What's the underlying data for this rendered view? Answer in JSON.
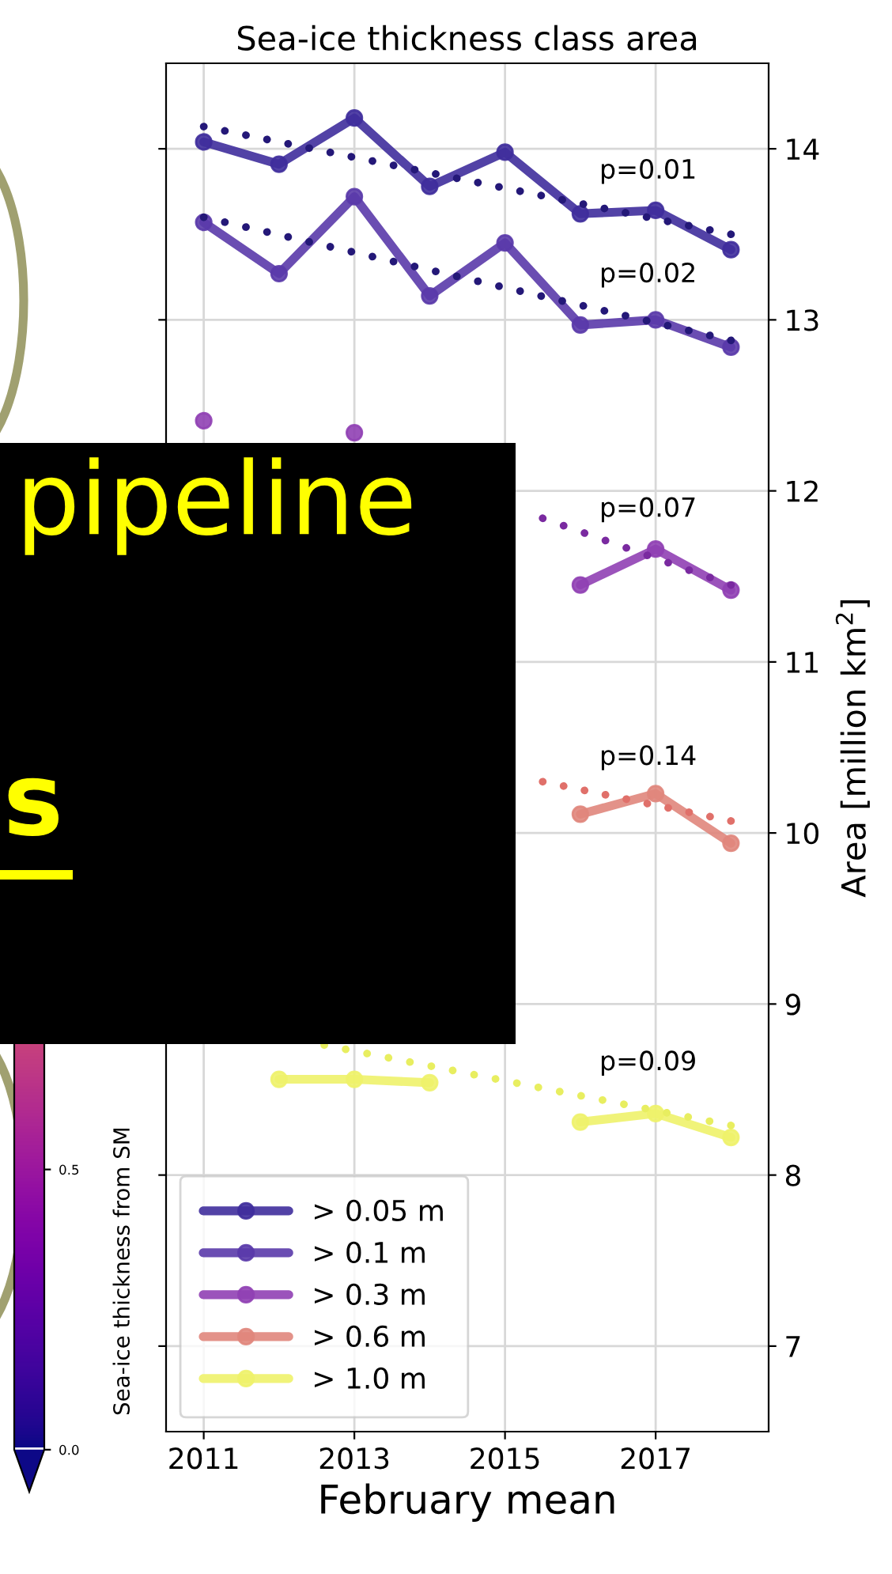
{
  "chart_data": {
    "type": "line",
    "title": "Sea-ice thickness class area",
    "xlabel": "February mean",
    "ylabel": "Area [million km$^{2}$]",
    "clabel": "Sea-ice thickness from SM",
    "clim": [
      0,
      1.5
    ],
    "cticks": [
      {
        "value": 0,
        "label": "0.0"
      },
      {
        "value": 0.5,
        "label": "0.5"
      }
    ],
    "x": [
      2011,
      2012,
      2013,
      2014,
      2015,
      2016,
      2017,
      2018
    ],
    "series": [
      {
        "name": "> 0.05 m",
        "color": "#3f2d9c",
        "values": [
          14.04,
          13.91,
          14.18,
          13.78,
          13.98,
          13.62,
          13.64,
          13.41
        ]
      },
      {
        "name": "> 0.1 m",
        "color": "#5a3aaa",
        "values": [
          13.57,
          13.27,
          13.72,
          13.14,
          13.45,
          12.97,
          13.0,
          12.84
        ]
      },
      {
        "name": "> 0.3 m",
        "color": "#9040b4",
        "values": [
          12.41,
          null,
          12.34,
          null,
          null,
          11.45,
          11.66,
          11.42
        ]
      },
      {
        "name": "> 0.6 m",
        "color": "#e0867c",
        "values": [
          null,
          null,
          null,
          null,
          null,
          10.11,
          10.23,
          9.94
        ]
      },
      {
        "name": "> 1.0 m",
        "color": "#eef26a",
        "values": [
          null,
          8.56,
          8.56,
          8.54,
          null,
          8.31,
          8.36,
          8.22
        ]
      },
      {
        "color": "#241878",
        "x": [
          2011,
          2018
        ],
        "values": [
          14.13,
          13.5
        ],
        "line_style": "dotted",
        "marker": "none"
      },
      {
        "color": "#241878",
        "x": [
          2011,
          2018
        ],
        "values": [
          13.6,
          12.88
        ],
        "line_style": "dotted",
        "marker": "none"
      },
      {
        "color": "#7a2aa0",
        "x": [
          2015.5,
          2018
        ],
        "values": [
          11.84,
          11.45
        ],
        "line_style": "dotted",
        "marker": "none"
      },
      {
        "color": "#e0706a",
        "x": [
          2015.5,
          2018
        ],
        "values": [
          10.3,
          10.07
        ],
        "line_style": "dotted",
        "marker": "none"
      },
      {
        "color": "#e8ee60",
        "x": [
          2012.6,
          2018
        ],
        "values": [
          8.76,
          8.29
        ],
        "line_style": "dotted",
        "marker": "none"
      }
    ],
    "xlim": [
      2010.5,
      2018.5
    ],
    "ylim": [
      6.5,
      14.5
    ],
    "xticks": [
      2011,
      2013,
      2015,
      2017
    ],
    "yticks": [
      7,
      8,
      9,
      10,
      11,
      12,
      13,
      14
    ],
    "grid": true,
    "legend": "bottom left",
    "marker": "circle",
    "line_style": "solid",
    "annotations": [
      "p=0.01",
      "p=0.02",
      "p=0.07",
      "p=0.14",
      "p=0.09",
      "pipeline",
      "s"
    ]
  }
}
